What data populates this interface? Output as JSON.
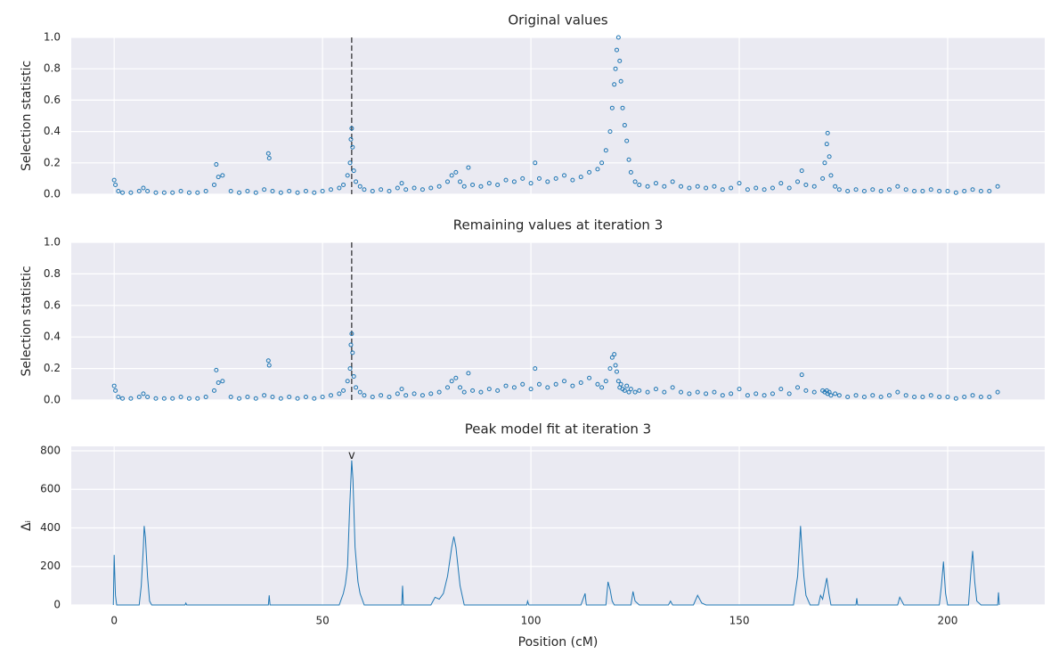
{
  "chart_data": [
    {
      "type": "scatter",
      "title": "Original values",
      "ylabel": "Selection statistic",
      "color": "#1f77b4",
      "grid": true,
      "vline": 57,
      "xlim": [
        -10.3,
        223.3
      ],
      "xticks": [
        0,
        50,
        100,
        150,
        200
      ],
      "ylim": [
        0,
        1
      ],
      "yticks": [
        {
          "value": 0,
          "label": "0.0"
        },
        0.2,
        0.4,
        0.6,
        0.8,
        {
          "value": 1,
          "label": "1.0"
        }
      ],
      "x": [
        0,
        0.3,
        1,
        2,
        4,
        6,
        7,
        8,
        10,
        12,
        14,
        16,
        18,
        20,
        22,
        24,
        24.5,
        25,
        26,
        28,
        30,
        32,
        34,
        36,
        37,
        37.2,
        38,
        40,
        42,
        44,
        46,
        48,
        50,
        52,
        54,
        55,
        56,
        56.6,
        56.8,
        57,
        57.2,
        57.5,
        58,
        59,
        60,
        62,
        64,
        66,
        68,
        69,
        70,
        72,
        74,
        76,
        78,
        80,
        81,
        82,
        83,
        84,
        85,
        86,
        88,
        90,
        92,
        94,
        96,
        98,
        100,
        101,
        102,
        104,
        106,
        108,
        110,
        112,
        114,
        116,
        117,
        118,
        119,
        119.5,
        120,
        120.3,
        120.6,
        121,
        121.3,
        121.6,
        122,
        122.5,
        123,
        123.5,
        124,
        125,
        126,
        128,
        130,
        132,
        134,
        136,
        138,
        140,
        142,
        144,
        146,
        148,
        150,
        152,
        154,
        156,
        158,
        160,
        162,
        164,
        165,
        166,
        168,
        170,
        170.5,
        171,
        171.2,
        171.6,
        172,
        173,
        174,
        176,
        178,
        180,
        182,
        184,
        186,
        188,
        190,
        192,
        194,
        196,
        198,
        200,
        202,
        204,
        206,
        208,
        210,
        212
      ],
      "values": [
        0.09,
        0.06,
        0.02,
        0.01,
        0.01,
        0.02,
        0.04,
        0.02,
        0.01,
        0.01,
        0.01,
        0.02,
        0.01,
        0.01,
        0.02,
        0.06,
        0.19,
        0.11,
        0.12,
        0.02,
        0.01,
        0.02,
        0.01,
        0.03,
        0.26,
        0.23,
        0.02,
        0.01,
        0.02,
        0.01,
        0.02,
        0.01,
        0.02,
        0.03,
        0.04,
        0.06,
        0.12,
        0.2,
        0.35,
        0.42,
        0.3,
        0.15,
        0.08,
        0.05,
        0.03,
        0.02,
        0.03,
        0.02,
        0.04,
        0.07,
        0.03,
        0.04,
        0.03,
        0.04,
        0.05,
        0.08,
        0.12,
        0.14,
        0.08,
        0.05,
        0.17,
        0.06,
        0.05,
        0.07,
        0.06,
        0.09,
        0.08,
        0.1,
        0.07,
        0.2,
        0.1,
        0.08,
        0.1,
        0.12,
        0.09,
        0.11,
        0.14,
        0.16,
        0.2,
        0.28,
        0.4,
        0.55,
        0.7,
        0.8,
        0.92,
        1.0,
        0.85,
        0.72,
        0.55,
        0.44,
        0.34,
        0.22,
        0.14,
        0.08,
        0.06,
        0.05,
        0.07,
        0.05,
        0.08,
        0.05,
        0.04,
        0.05,
        0.04,
        0.05,
        0.03,
        0.04,
        0.07,
        0.03,
        0.04,
        0.03,
        0.04,
        0.07,
        0.04,
        0.08,
        0.15,
        0.06,
        0.05,
        0.1,
        0.2,
        0.32,
        0.39,
        0.24,
        0.12,
        0.05,
        0.03,
        0.02,
        0.03,
        0.02,
        0.03,
        0.02,
        0.03,
        0.05,
        0.03,
        0.02,
        0.02,
        0.03,
        0.02,
        0.02,
        0.01,
        0.02,
        0.03,
        0.02,
        0.02,
        0.05
      ]
    },
    {
      "type": "scatter",
      "title": "Remaining values at iteration 3",
      "ylabel": "Selection statistic",
      "color": "#1f77b4",
      "grid": true,
      "vline": 57,
      "xlim": [
        -10.3,
        223.3
      ],
      "xticks": [
        0,
        50,
        100,
        150,
        200
      ],
      "ylim": [
        0,
        1
      ],
      "yticks": [
        {
          "value": 0,
          "label": "0.0"
        },
        0.2,
        0.4,
        0.6,
        0.8,
        {
          "value": 1,
          "label": "1.0"
        }
      ],
      "x": [
        0,
        0.3,
        1,
        2,
        4,
        6,
        7,
        8,
        10,
        12,
        14,
        16,
        18,
        20,
        22,
        24,
        24.5,
        25,
        26,
        28,
        30,
        32,
        34,
        36,
        37,
        37.2,
        38,
        40,
        42,
        44,
        46,
        48,
        50,
        52,
        54,
        55,
        56,
        56.6,
        56.8,
        57,
        57.2,
        57.5,
        58,
        59,
        60,
        62,
        64,
        66,
        68,
        69,
        70,
        72,
        74,
        76,
        78,
        80,
        81,
        82,
        83,
        84,
        85,
        86,
        88,
        90,
        92,
        94,
        96,
        98,
        100,
        101,
        102,
        104,
        106,
        108,
        110,
        112,
        114,
        116,
        117,
        118,
        119,
        119.5,
        120,
        120.3,
        120.6,
        121,
        121.3,
        121.6,
        122,
        122.5,
        123,
        123.5,
        124,
        125,
        126,
        128,
        130,
        132,
        134,
        136,
        138,
        140,
        142,
        144,
        146,
        148,
        150,
        152,
        154,
        156,
        158,
        160,
        162,
        164,
        165,
        166,
        168,
        170,
        170.5,
        171,
        171.2,
        171.6,
        172,
        173,
        174,
        176,
        178,
        180,
        182,
        184,
        186,
        188,
        190,
        192,
        194,
        196,
        198,
        200,
        202,
        204,
        206,
        208,
        210,
        212
      ],
      "values": [
        0.09,
        0.06,
        0.02,
        0.01,
        0.01,
        0.02,
        0.04,
        0.02,
        0.01,
        0.01,
        0.01,
        0.02,
        0.01,
        0.01,
        0.02,
        0.06,
        0.19,
        0.11,
        0.12,
        0.02,
        0.01,
        0.02,
        0.01,
        0.03,
        0.25,
        0.22,
        0.02,
        0.01,
        0.02,
        0.01,
        0.02,
        0.01,
        0.02,
        0.03,
        0.04,
        0.06,
        0.12,
        0.2,
        0.35,
        0.42,
        0.3,
        0.15,
        0.08,
        0.05,
        0.03,
        0.02,
        0.03,
        0.02,
        0.04,
        0.07,
        0.03,
        0.04,
        0.03,
        0.04,
        0.05,
        0.08,
        0.12,
        0.14,
        0.08,
        0.05,
        0.17,
        0.06,
        0.05,
        0.07,
        0.06,
        0.09,
        0.08,
        0.1,
        0.07,
        0.2,
        0.1,
        0.08,
        0.1,
        0.12,
        0.09,
        0.11,
        0.14,
        0.1,
        0.08,
        0.12,
        0.2,
        0.27,
        0.29,
        0.22,
        0.18,
        0.12,
        0.08,
        0.1,
        0.07,
        0.06,
        0.09,
        0.05,
        0.07,
        0.05,
        0.06,
        0.05,
        0.07,
        0.05,
        0.08,
        0.05,
        0.04,
        0.05,
        0.04,
        0.05,
        0.03,
        0.04,
        0.07,
        0.03,
        0.04,
        0.03,
        0.04,
        0.07,
        0.04,
        0.08,
        0.16,
        0.06,
        0.05,
        0.06,
        0.05,
        0.06,
        0.04,
        0.05,
        0.03,
        0.04,
        0.03,
        0.02,
        0.03,
        0.02,
        0.03,
        0.02,
        0.03,
        0.05,
        0.03,
        0.02,
        0.02,
        0.03,
        0.02,
        0.02,
        0.01,
        0.02,
        0.03,
        0.02,
        0.02,
        0.05
      ]
    },
    {
      "type": "line",
      "title": "Peak model fit at iteration 3",
      "ylabel": "Δᵢ",
      "xlabel": "Position (cM)",
      "color": "#1f77b4",
      "grid": true,
      "annotation": {
        "text": "v",
        "x": 57,
        "y": 775
      },
      "xlim": [
        -10.3,
        223.3
      ],
      "xticks": [
        0,
        50,
        100,
        150,
        200
      ],
      "ylim": [
        0,
        823
      ],
      "yticks": [
        0,
        200,
        400,
        600,
        800
      ],
      "x": [
        -0.2,
        0,
        0.3,
        0.6,
        6,
        6.5,
        7,
        7.2,
        7.5,
        8,
        8.5,
        9,
        17,
        17.2,
        17.4,
        37,
        37.2,
        37.4,
        54,
        55,
        55.5,
        56,
        56.5,
        57,
        57.3,
        57.8,
        58.5,
        59,
        60,
        69,
        69.2,
        69.4,
        76,
        77,
        78,
        79,
        80,
        81,
        81.5,
        82,
        83,
        84,
        99,
        99.2,
        99.5,
        112,
        113,
        113.3,
        118,
        118.5,
        119,
        119.5,
        120,
        124,
        124.5,
        125,
        126,
        133,
        133.5,
        134,
        139,
        140,
        141,
        142,
        163,
        164,
        164.7,
        165,
        165.5,
        166,
        167,
        169,
        169.5,
        170,
        171,
        171.5,
        172,
        178,
        178.2,
        178.4,
        188,
        188.5,
        189,
        189.5,
        198,
        198.5,
        199,
        199.5,
        200,
        205,
        205.5,
        206,
        206.5,
        207,
        208,
        212,
        212.2,
        212.4
      ],
      "values": [
        0,
        260,
        50,
        0,
        0,
        100,
        300,
        410,
        350,
        150,
        20,
        0,
        0,
        10,
        0,
        0,
        50,
        0,
        0,
        60,
        110,
        200,
        500,
        750,
        650,
        300,
        120,
        60,
        0,
        0,
        100,
        0,
        0,
        40,
        30,
        60,
        150,
        300,
        355,
        300,
        100,
        0,
        0,
        20,
        0,
        0,
        60,
        0,
        0,
        120,
        80,
        20,
        0,
        0,
        70,
        20,
        0,
        0,
        20,
        0,
        0,
        50,
        10,
        0,
        0,
        150,
        410,
        300,
        150,
        50,
        0,
        0,
        50,
        30,
        140,
        60,
        0,
        0,
        35,
        0,
        0,
        40,
        20,
        0,
        0,
        100,
        225,
        60,
        0,
        0,
        150,
        280,
        120,
        20,
        0,
        0,
        65,
        0
      ]
    }
  ]
}
